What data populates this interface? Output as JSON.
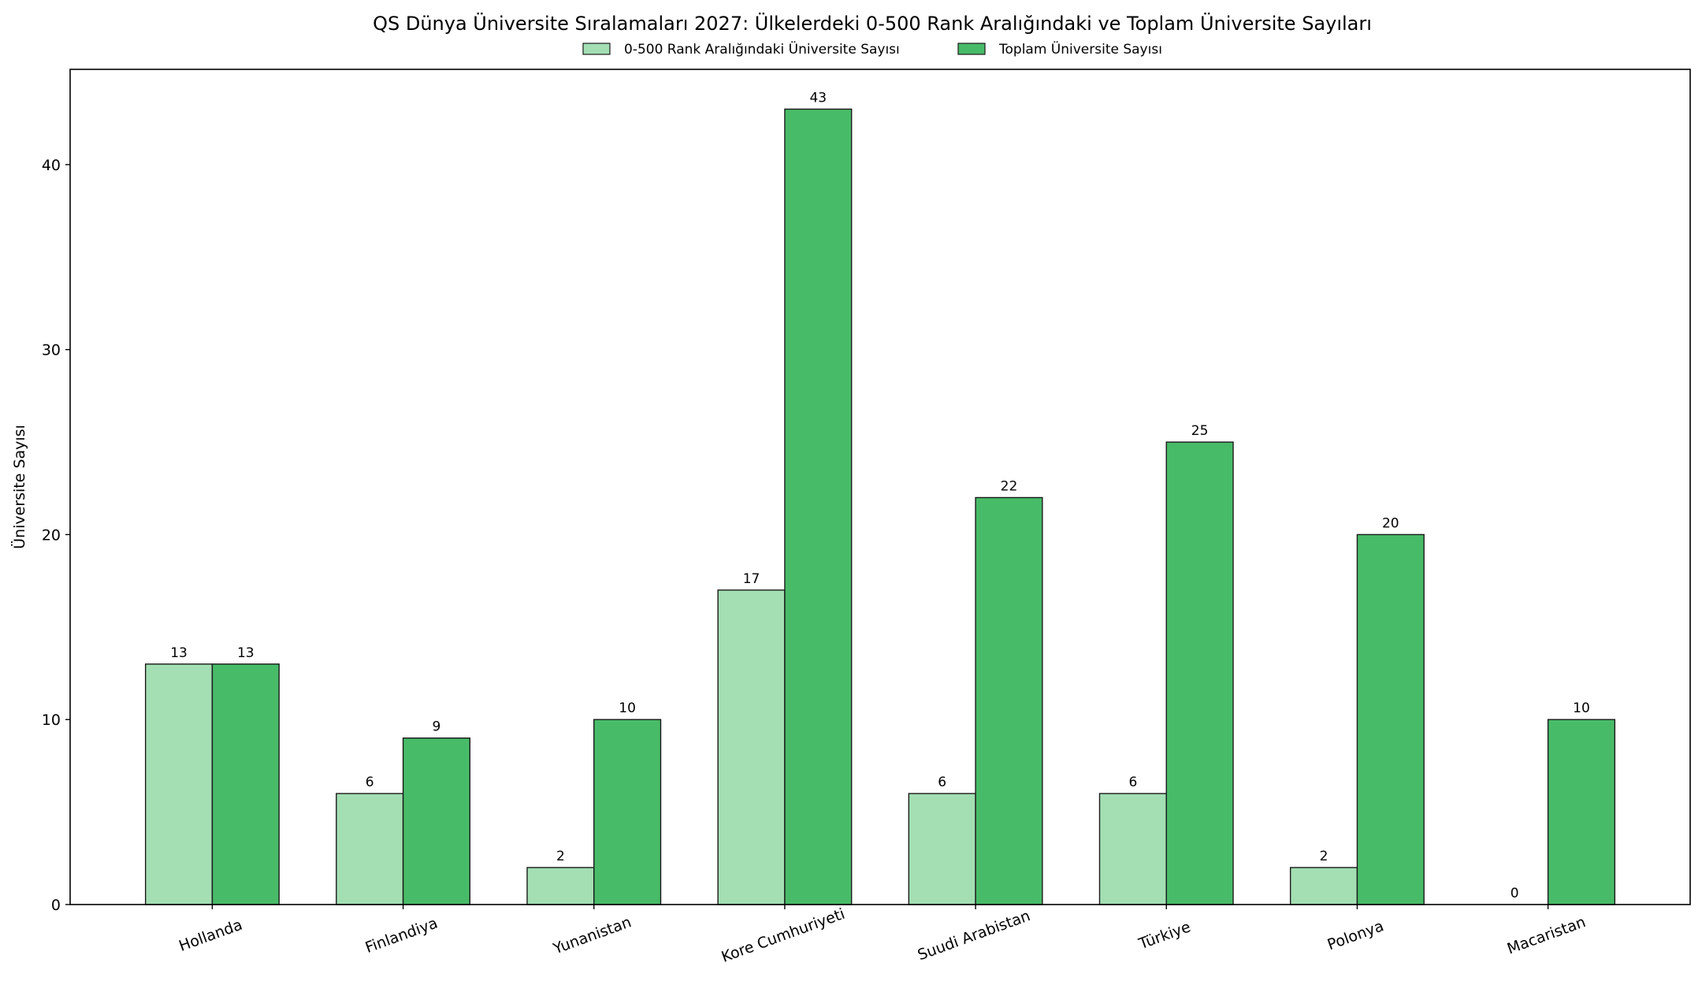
{
  "chart_data": {
    "type": "bar",
    "title": "QS Dünya Üniversite Sıralamaları 2027: Ülkelerdeki 0-500 Rank Aralığındaki ve Toplam Üniversite Sayıları",
    "xlabel": "",
    "ylabel": "Üniversite Sayısı",
    "categories": [
      "Hollanda",
      "Finlandiya",
      "Yunanistan",
      "Kore Cumhuriyeti",
      "Suudi Arabistan",
      "Türkiye",
      "Polonya",
      "Macaristan"
    ],
    "series": [
      {
        "name": "0-500 Rank Aralığındaki Üniversite Sayısı",
        "color": "#a3dfb3",
        "values": [
          13,
          6,
          2,
          17,
          6,
          6,
          2,
          0
        ]
      },
      {
        "name": "Toplam Üniversite Sayısı",
        "color": "#48bb68",
        "values": [
          13,
          9,
          10,
          43,
          22,
          25,
          20,
          10
        ]
      }
    ],
    "ylim": [
      0,
      45.15
    ],
    "yticks": [
      0,
      10,
      20,
      30,
      40
    ],
    "xtick_rotation_deg": -20,
    "legend": "top-center",
    "grid": false,
    "edge_color": "#1a1a1a"
  }
}
